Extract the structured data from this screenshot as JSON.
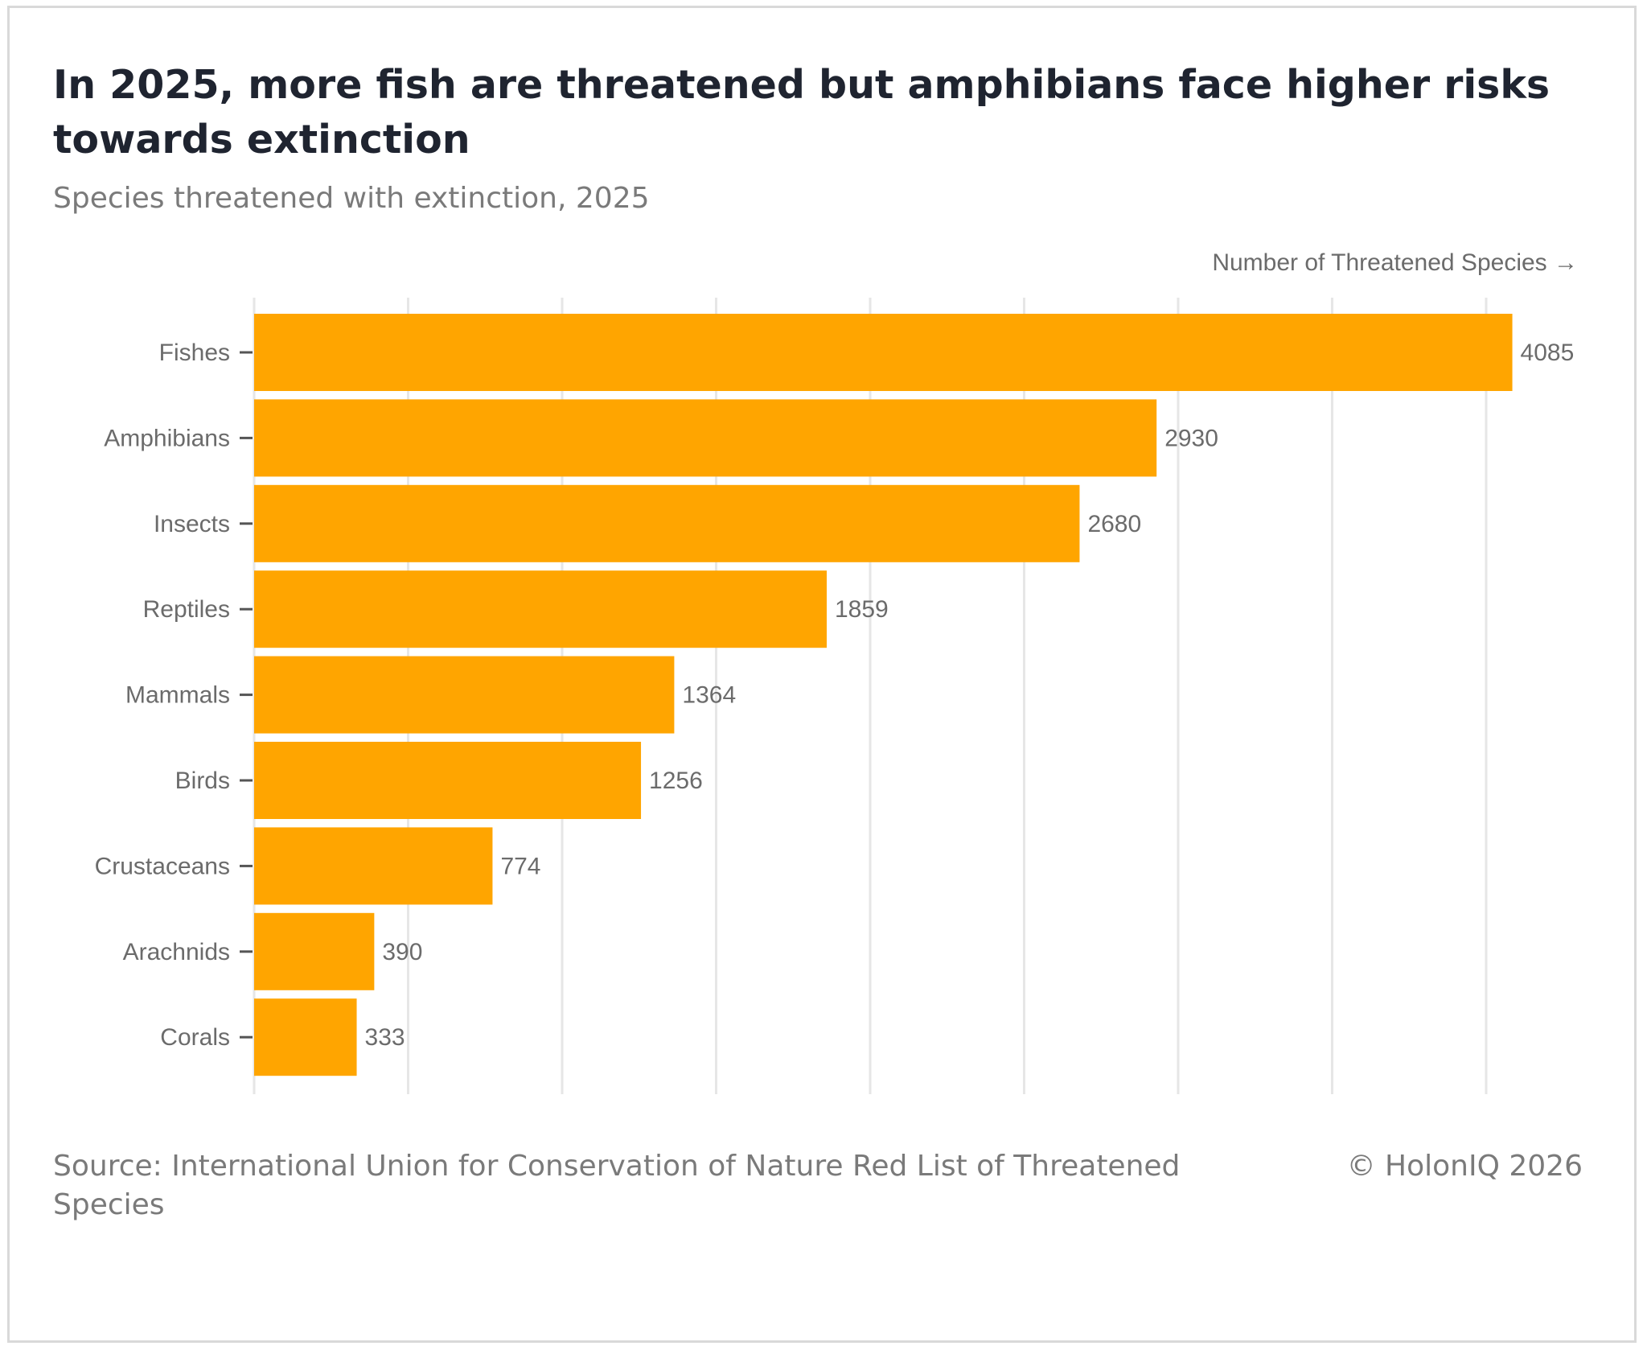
{
  "header": {
    "title": "In 2025, more fish are threatened but amphibians face higher risks towards extinction",
    "subtitle": "Species threatened with extinction, 2025"
  },
  "footer": {
    "source": "Source: International Union for Conservation of Nature Red List of Threatened Species",
    "copyright": "© HolonIQ 2026"
  },
  "colors": {
    "bar": "#FFA500",
    "grid": "#e6e6e6",
    "axis": "#555555",
    "label": "#6b6b6b"
  },
  "chart_data": {
    "type": "bar",
    "orientation": "horizontal",
    "title": "In 2025, more fish are threatened but amphibians face higher risks towards extinction",
    "subtitle": "Species threatened with extinction, 2025",
    "xlabel": "Number of Threatened Species →",
    "ylabel": "",
    "categories": [
      "Fishes",
      "Amphibians",
      "Insects",
      "Reptiles",
      "Mammals",
      "Birds",
      "Crustaceans",
      "Arachnids",
      "Corals"
    ],
    "values": [
      4085,
      2930,
      2680,
      1859,
      1364,
      1256,
      774,
      390,
      333
    ],
    "data_labels": [
      "4085",
      "2930",
      "2680",
      "1859",
      "1364",
      "1256",
      "774",
      "390",
      "333"
    ],
    "xlim": [
      0,
      4500
    ],
    "grid_step": 500,
    "grid": true,
    "x_tick_labels_shown": false
  }
}
